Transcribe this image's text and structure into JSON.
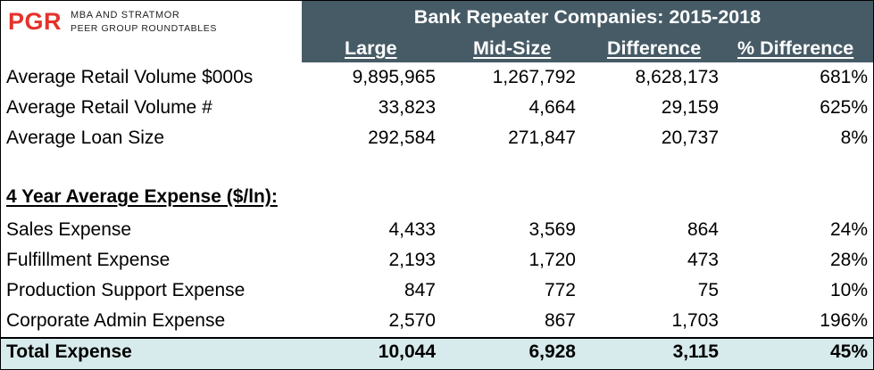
{
  "logo": {
    "mark": "PGR",
    "line1": "MBA AND STRATMOR",
    "line2": "PEER GROUP ROUNDTABLES",
    "brand_color": "#e5322b"
  },
  "header": {
    "title": "Bank Repeater Companies: 2015-2018",
    "columns": [
      "Large",
      "Mid-Size",
      "Difference",
      "% Difference"
    ],
    "band_color": "#465b66"
  },
  "rows": [
    {
      "label": "Average Retail Volume $000s",
      "large": "9,895,965",
      "mid": "1,267,792",
      "diff": "8,628,173",
      "pct": "681%"
    },
    {
      "label": "Average Retail Volume #",
      "large": "33,823",
      "mid": "4,664",
      "diff": "29,159",
      "pct": "625%"
    },
    {
      "label": "Average Loan Size",
      "large": "292,584",
      "mid": "271,847",
      "diff": "20,737",
      "pct": "8%"
    }
  ],
  "section_title": "4 Year Average Expense ($/ln):",
  "expense_rows": [
    {
      "label": "Sales Expense",
      "large": "4,433",
      "mid": "3,569",
      "diff": "864",
      "pct": "24%"
    },
    {
      "label": "Fulfillment Expense",
      "large": "2,193",
      "mid": "1,720",
      "diff": "473",
      "pct": "28%"
    },
    {
      "label": "Production Support Expense",
      "large": "847",
      "mid": "772",
      "diff": "75",
      "pct": "10%"
    },
    {
      "label": "Corporate Admin Expense",
      "large": "2,570",
      "mid": "867",
      "diff": "1,703",
      "pct": "196%"
    }
  ],
  "total": {
    "label": "Total Expense",
    "large": "10,044",
    "mid": "6,928",
    "diff": "3,115",
    "pct": "45%",
    "row_color": "#d8ebec"
  }
}
